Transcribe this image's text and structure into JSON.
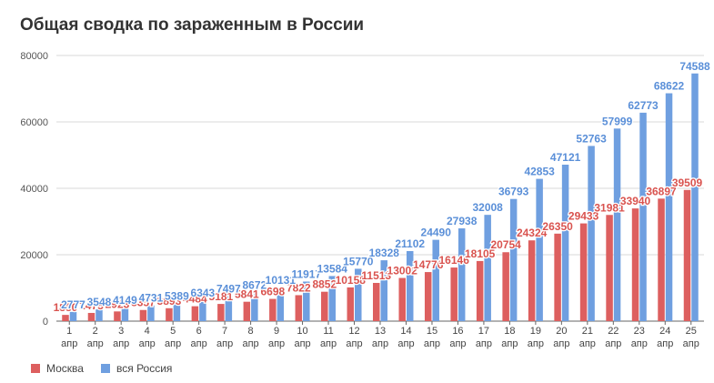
{
  "title": "Общая сводка по зараженным в России",
  "colors": {
    "moscow": "#dd5f5f",
    "russia": "#6f9fe0",
    "moscow_label": "#d9534f",
    "russia_label": "#5a8fd8",
    "grid": "#d9d9d9",
    "axis": "#666666"
  },
  "chart_data": {
    "type": "bar",
    "title": "Общая сводка по зараженным в России",
    "xlabel": "",
    "ylabel": "",
    "ylim": [
      0,
      80000
    ],
    "yticks": [
      "0",
      "20000",
      "40000",
      "60000",
      "80000"
    ],
    "ytick_values": [
      0,
      20000,
      40000,
      60000,
      80000
    ],
    "grid": true,
    "legend": "bottom-left",
    "categories": [
      "1",
      "2",
      "3",
      "4",
      "5",
      "6",
      "7",
      "8",
      "9",
      "10",
      "11",
      "12",
      "13",
      "14",
      "15",
      "16",
      "17",
      "18",
      "19",
      "20",
      "21",
      "22",
      "23",
      "24",
      "25"
    ],
    "category_sub": "апр",
    "series": [
      {
        "name": "Москва",
        "values": [
          1880,
          2475,
          2923,
          3357,
          3893,
          4484,
          5181,
          5841,
          6698,
          7822,
          8852,
          10158,
          11513,
          13002,
          14776,
          16146,
          18105,
          20754,
          24324,
          26350,
          29433,
          31981,
          33940,
          36897,
          39509
        ]
      },
      {
        "name": "вся Россия",
        "values": [
          2777,
          3548,
          4149,
          4731,
          5389,
          6343,
          7497,
          8672,
          10131,
          11917,
          13584,
          15770,
          18328,
          21102,
          24490,
          27938,
          32008,
          36793,
          42853,
          47121,
          52763,
          57999,
          62773,
          68622,
          74588
        ]
      }
    ]
  }
}
